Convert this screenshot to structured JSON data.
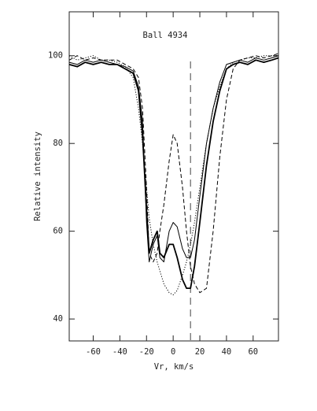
{
  "chart_data": {
    "type": "line",
    "title": "Ball 4934",
    "xlabel": "Vr, km/s",
    "ylabel": "Relative intensity",
    "x": [
      -78,
      -72,
      -66,
      -60,
      -54,
      -48,
      -42,
      -36,
      -30,
      -26,
      -23,
      -20,
      -18,
      -15,
      -12,
      -10,
      -7,
      -3,
      0,
      3,
      7,
      10,
      13,
      16,
      20,
      25,
      30,
      35,
      40,
      45,
      50,
      56,
      62,
      68,
      74,
      79
    ],
    "series": [
      {
        "color": "#000",
        "style": "solid",
        "width": 1.8,
        "values": [
          98,
          97.5,
          98.5,
          98,
          98.5,
          98,
          98,
          97,
          96,
          92,
          82,
          65,
          55,
          58,
          60,
          55,
          54,
          57,
          57,
          54,
          49,
          47,
          47,
          52,
          62,
          75,
          85,
          92,
          97,
          98,
          98.5,
          98,
          99,
          98.5,
          99,
          99.5
        ]
      },
      {
        "color": "#000",
        "style": "solid",
        "width": 1,
        "values": [
          98.5,
          98,
          99,
          98.5,
          99,
          98.5,
          98,
          97.5,
          96.5,
          93,
          85,
          62,
          53,
          57,
          59,
          54,
          53,
          60,
          62,
          61,
          56,
          54,
          54,
          58,
          68,
          80,
          88,
          94,
          98,
          98.5,
          99,
          98.5,
          99.5,
          99,
          99.5,
          100
        ]
      },
      {
        "color": "#000",
        "style": "dashed",
        "width": 1,
        "values": [
          99,
          100,
          99,
          99.5,
          99,
          99,
          99,
          98,
          97,
          95,
          88,
          70,
          55,
          53,
          55,
          60,
          66,
          76,
          82,
          80,
          70,
          60,
          52,
          48,
          46,
          47,
          60,
          77,
          90,
          97,
          99,
          99.5,
          100,
          99.5,
          100,
          100.5
        ]
      },
      {
        "color": "#000",
        "style": "dotted",
        "width": 1,
        "values": [
          100,
          99,
          99.5,
          100,
          99,
          99,
          98.5,
          97.5,
          95,
          88,
          80,
          70,
          63,
          57,
          53,
          51,
          48,
          46,
          45.5,
          46.5,
          50,
          53,
          57,
          62,
          70,
          80,
          88,
          93,
          97,
          98.5,
          99,
          99.5,
          99.5,
          100,
          100,
          100
        ]
      }
    ],
    "vline": 13,
    "xlim": [
      -78,
      79
    ],
    "ylim": [
      35,
      110
    ],
    "xticks": [
      -60,
      -40,
      -20,
      0,
      20,
      40,
      60
    ],
    "yticks": [
      40,
      60,
      80,
      100
    ]
  }
}
